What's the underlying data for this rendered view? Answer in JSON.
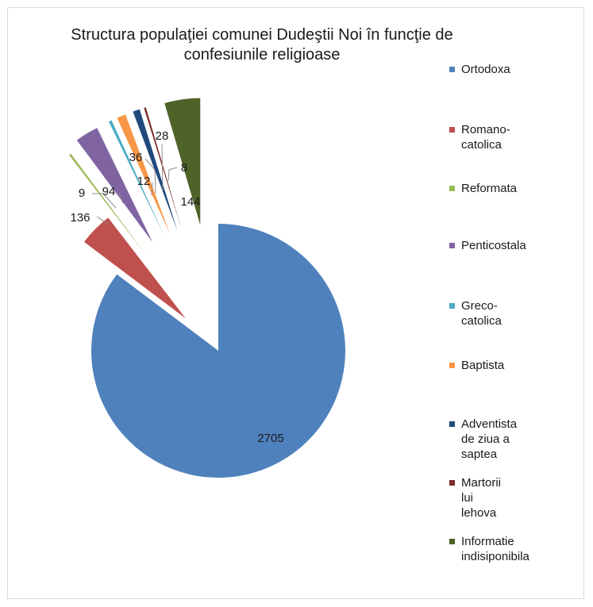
{
  "chart_data": {
    "type": "pie",
    "title": "Structura populaţiei comunei Dudeştii Noi în funcţie de confesiunile religioase",
    "categories": [
      "Ortodoxa",
      "Romano-catolica",
      "Reformata",
      "Penticostala",
      "Greco-catolica",
      "Baptista",
      "Adventista de ziua a saptea",
      "Martorii lui lehova",
      "Informatie indisiponibila"
    ],
    "values": [
      2705,
      136,
      9,
      94,
      12,
      36,
      28,
      8,
      144
    ],
    "data_labels": [
      "2705",
      "136",
      "9",
      "94",
      "12",
      "36",
      "28",
      "8",
      "144"
    ],
    "colors": [
      "#4f81bd",
      "#c0504d",
      "#9bbb59",
      "#8064a2",
      "#4bacc6",
      "#f79646",
      "#1f497d",
      "#7f2d2b",
      "#4f6228"
    ],
    "legend_position": "right"
  },
  "legend": {
    "items": [
      "Ortodoxa",
      "Romano-\ncatolica",
      "Reformata",
      "Penticostala",
      "Greco-\ncatolica",
      "Baptista",
      "Adventista\nde ziua a\nsaptea",
      "Martorii\nlui\nlehova",
      "Informatie\nindisiponibila"
    ]
  }
}
